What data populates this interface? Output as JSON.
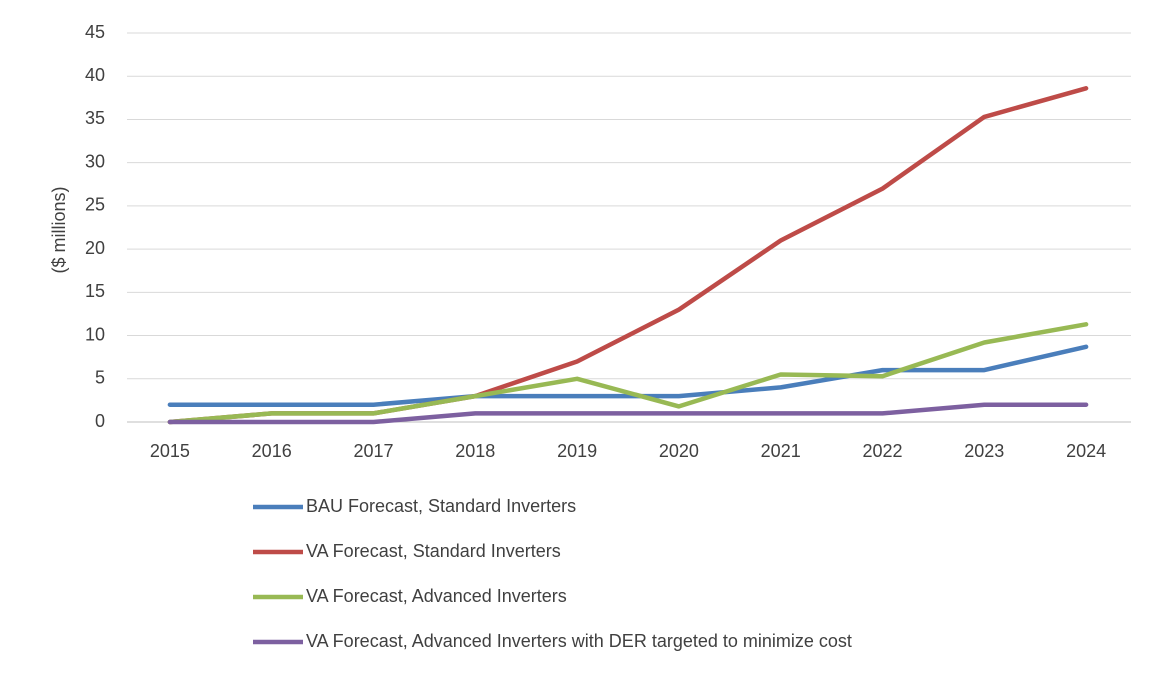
{
  "chart_data": {
    "type": "line",
    "y_label": "($ millions)",
    "categories": [
      "2015",
      "2016",
      "2017",
      "2018",
      "2019",
      "2020",
      "2021",
      "2022",
      "2023",
      "2024"
    ],
    "series": [
      {
        "name": "BAU Forecast, Standard Inverters",
        "color": "#4a7ebb",
        "values": [
          2,
          2,
          2,
          3,
          3,
          3,
          4,
          6,
          6,
          8.7
        ]
      },
      {
        "name": "VA Forecast, Standard Inverters",
        "color": "#be4b48",
        "values": [
          0,
          1,
          1,
          3,
          7,
          13,
          21,
          27,
          35.3,
          38.6
        ]
      },
      {
        "name": "VA Forecast, Advanced Inverters",
        "color": "#98b954",
        "values": [
          0,
          1,
          1,
          3,
          5,
          1.8,
          5.5,
          5.3,
          9.2,
          11.3
        ]
      },
      {
        "name": "VA Forecast, Advanced Inverters with DER targeted to minimize cost",
        "color": "#7d60a0",
        "values": [
          0,
          0,
          0,
          1,
          1,
          1,
          1,
          1,
          2,
          2
        ]
      }
    ],
    "ylim": [
      0,
      45
    ],
    "yticks": [
      0,
      5,
      10,
      15,
      20,
      25,
      30,
      35,
      40,
      45
    ],
    "grid": true
  }
}
